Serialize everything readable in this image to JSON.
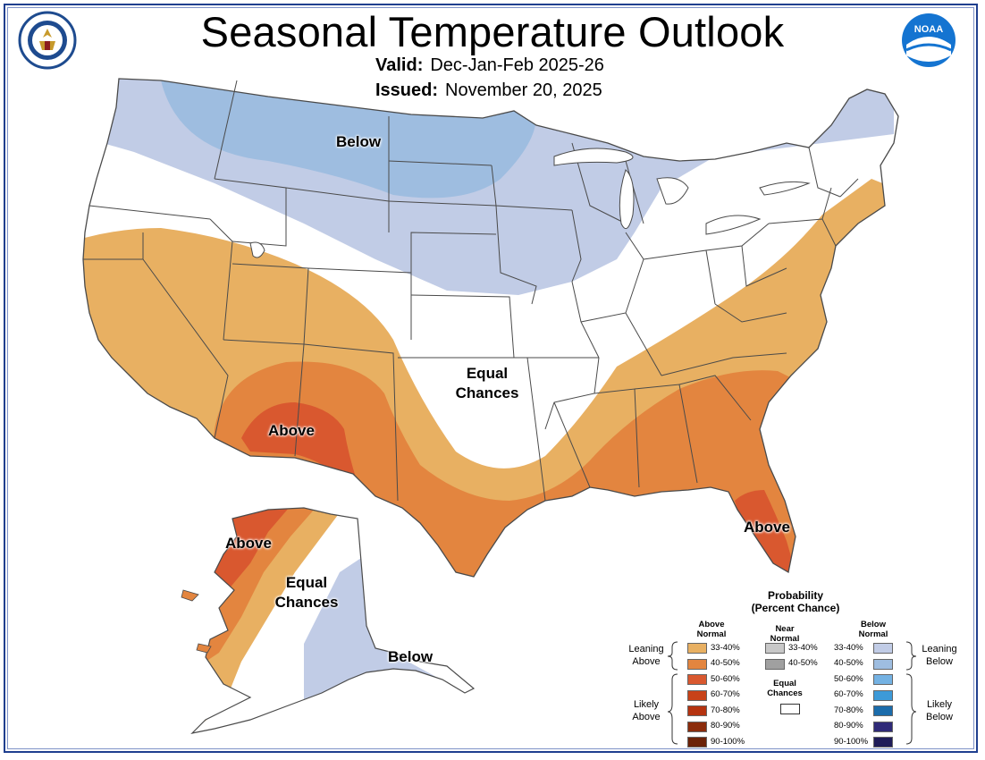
{
  "title": "Seasonal Temperature Outlook",
  "valid": {
    "label": "Valid:",
    "value": "Dec-Jan-Feb 2025-26"
  },
  "issued": {
    "label": "Issued:",
    "value": "November 20, 2025"
  },
  "logos": {
    "left": "department-of-commerce-seal",
    "right": "noaa-logo",
    "noaa_text": "NOAA"
  },
  "map_labels": {
    "below_north": "Below",
    "equal_chances_center_1": "Equal",
    "equal_chances_center_2": "Chances",
    "above_southwest": "Above",
    "above_florida": "Above",
    "above_alaska": "Above",
    "equal_chances_alaska_1": "Equal",
    "equal_chances_alaska_2": "Chances",
    "below_alaska": "Below"
  },
  "colors": {
    "above_33_40": "#e8b062",
    "above_40_50": "#e3853f",
    "above_50_60": "#d9582f",
    "above_60_70": "#c84218",
    "above_70_80": "#b53310",
    "above_80_90": "#8b2c0c",
    "above_90_100": "#6b2208",
    "near_33_40": "#c8c8c8",
    "near_40_50": "#a0a0a0",
    "below_33_40": "#c1cce6",
    "below_40_50": "#9ebde0",
    "below_50_60": "#74b2e3",
    "below_60_70": "#3d9ad8",
    "below_70_80": "#1b6cab",
    "below_80_90": "#2f2a78",
    "below_90_100": "#1f1c58",
    "border": "#4a4a4a",
    "frame": "#1f3f8f"
  },
  "legend": {
    "title_1": "Probability",
    "title_2": "(Percent Chance)",
    "above_head_1": "Above",
    "above_head_2": "Normal",
    "near_head_1": "Near",
    "near_head_2": "Normal",
    "below_head_1": "Below",
    "below_head_2": "Normal",
    "above_ranges": [
      "33-40%",
      "40-50%",
      "50-60%",
      "60-70%",
      "70-80%",
      "80-90%",
      "90-100%"
    ],
    "near_ranges": [
      "33-40%",
      "40-50%"
    ],
    "below_ranges": [
      "33-40%",
      "40-50%",
      "50-60%",
      "60-70%",
      "70-80%",
      "80-90%",
      "90-100%"
    ],
    "equal_chances_1": "Equal",
    "equal_chances_2": "Chances",
    "leaning_above_1": "Leaning",
    "leaning_above_2": "Above",
    "likely_above_1": "Likely",
    "likely_above_2": "Above",
    "leaning_below_1": "Leaning",
    "leaning_below_2": "Below",
    "likely_below_1": "Likely",
    "likely_below_2": "Below"
  }
}
